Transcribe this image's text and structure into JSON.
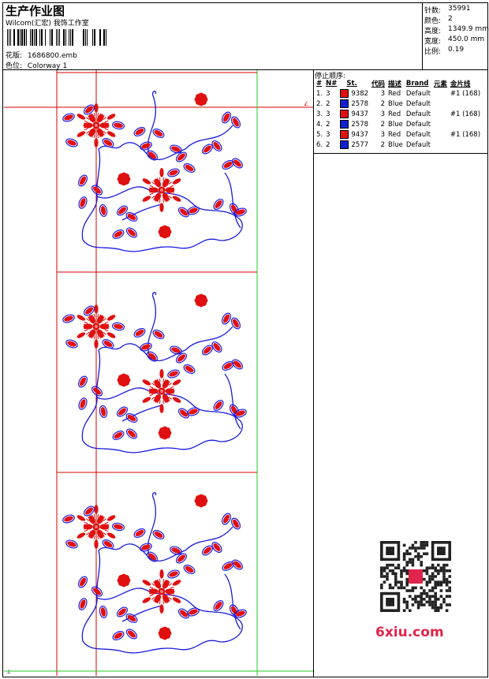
{
  "header": {
    "title": "生产作业图",
    "company": "Wilcom(汇宏) 我饰工作室",
    "design_label": "花版:",
    "design_file": "1686800.emb",
    "color_label": "色位:",
    "colorway": "Colorway 1"
  },
  "stats": [
    {
      "label": "针数:",
      "value": "35991"
    },
    {
      "label": "颜色:",
      "value": "2"
    },
    {
      "label": "高度:",
      "value": "1349.9 mm"
    },
    {
      "label": "宽度:",
      "value": "450.0 mm"
    },
    {
      "label": "比例:",
      "value": "0.19"
    }
  ],
  "stop_sequence": {
    "title": "停止顺序:",
    "headers": [
      "#",
      "N#",
      "St.",
      "代码",
      "描述",
      "Brand",
      "元素",
      "金片线"
    ],
    "rows": [
      {
        "idx": "1.",
        "n": "3",
        "code": "9382",
        "qty": "3",
        "desc": "Red",
        "brand": "Default",
        "seq": "#1 (168)",
        "color": "#e01010"
      },
      {
        "idx": "2.",
        "n": "2",
        "code": "2578",
        "qty": "2",
        "desc": "Blue",
        "brand": "Default",
        "seq": "",
        "color": "#1020d0"
      },
      {
        "idx": "3.",
        "n": "3",
        "code": "9437",
        "qty": "3",
        "desc": "Red",
        "brand": "Default",
        "seq": "#1 (168)",
        "color": "#e01010"
      },
      {
        "idx": "4.",
        "n": "2",
        "code": "2578",
        "qty": "2",
        "desc": "Blue",
        "brand": "Default",
        "seq": "",
        "color": "#1020d0"
      },
      {
        "idx": "5.",
        "n": "3",
        "code": "9437",
        "qty": "3",
        "desc": "Red",
        "brand": "Default",
        "seq": "#1 (168)",
        "color": "#e01010"
      },
      {
        "idx": "6.",
        "n": "2",
        "code": "2577",
        "qty": "2",
        "desc": "Blue",
        "brand": "Default",
        "seq": "",
        "color": "#1020d0"
      }
    ]
  },
  "watermark": {
    "text": "6xiu.com",
    "color": "#e0244a"
  },
  "colors": {
    "red": "#e01010",
    "blue": "#1a1adc",
    "guide_red": "#d40000",
    "guide_green": "#22cc22"
  }
}
